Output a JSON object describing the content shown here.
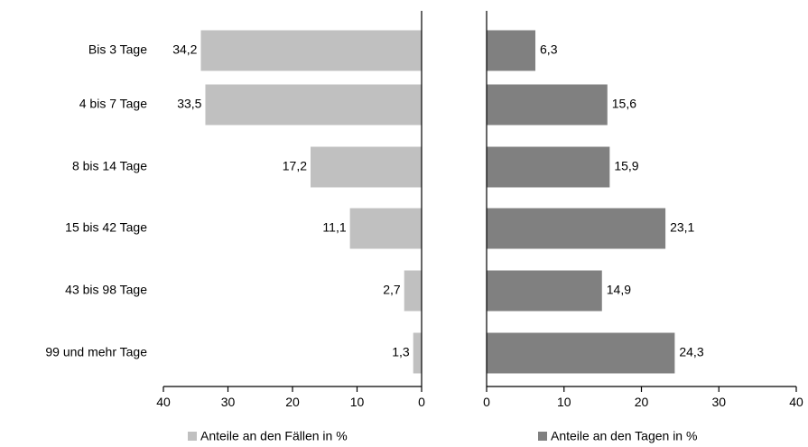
{
  "chart_data": [
    {
      "type": "bar",
      "orientation": "horizontal",
      "direction": "right-to-left",
      "categories": [
        "Bis 3 Tage",
        "4 bis 7 Tage",
        "8 bis 14 Tage",
        "15 bis 42 Tage",
        "43 bis 98 Tage",
        "99 und mehr Tage"
      ],
      "series": [
        {
          "name": "Anteile an den Fällen in %",
          "values": [
            34.2,
            33.5,
            17.2,
            11.1,
            2.7,
            1.3
          ],
          "value_labels": [
            "34,2",
            "33,5",
            "17,2",
            "11,1",
            "2,7",
            "1,3"
          ],
          "color": "#c0c0c0"
        }
      ],
      "xlim": [
        40,
        0
      ],
      "ticks": [
        40,
        30,
        20,
        10,
        0
      ],
      "tick_labels": [
        "40",
        "30",
        "20",
        "10",
        "0"
      ],
      "legend": "bottom",
      "grid": false
    },
    {
      "type": "bar",
      "orientation": "horizontal",
      "direction": "left-to-right",
      "categories": [
        "Bis 3 Tage",
        "4 bis 7 Tage",
        "8 bis 14 Tage",
        "15 bis 42 Tage",
        "43 bis 98 Tage",
        "99 und mehr Tage"
      ],
      "series": [
        {
          "name": "Anteile an den Tagen in %",
          "values": [
            6.3,
            15.6,
            15.9,
            23.1,
            14.9,
            24.3
          ],
          "value_labels": [
            "6,3",
            "15,6",
            "15,9",
            "23,1",
            "14,9",
            "24,3"
          ],
          "color": "#808080"
        }
      ],
      "xlim": [
        0,
        40
      ],
      "ticks": [
        0,
        10,
        20,
        30,
        40
      ],
      "tick_labels": [
        "0",
        "10",
        "20",
        "30",
        "40"
      ],
      "legend": "bottom",
      "grid": false
    }
  ]
}
